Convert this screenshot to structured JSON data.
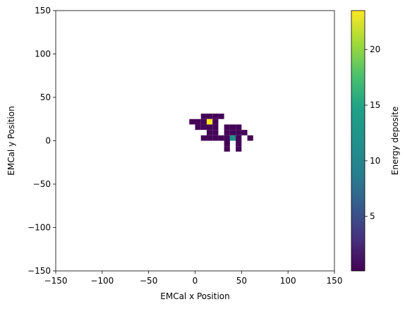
{
  "chart_data": {
    "type": "heatmap",
    "title": "",
    "xlabel": "EMCal x Position",
    "ylabel": "EMCal y Position",
    "xlim": [
      -150,
      150
    ],
    "ylim": [
      -150,
      150
    ],
    "x_ticks": [
      -150,
      -100,
      -50,
      0,
      50,
      100,
      150
    ],
    "y_ticks": [
      -150,
      -100,
      -50,
      0,
      50,
      100,
      150
    ],
    "x_tick_labels": [
      "−150",
      "−100",
      "−50",
      "0",
      "50",
      "100",
      "150"
    ],
    "y_tick_labels": [
      "−150",
      "−100",
      "−50",
      "0",
      "50",
      "100",
      "150"
    ],
    "bin_width": 6.25,
    "grid": false,
    "colormap": "viridis",
    "colorbar": {
      "label": "Energy deposite",
      "vmin": 0.1,
      "vmax": 23.5,
      "ticks": [
        5,
        10,
        15,
        20
      ],
      "tick_labels": [
        "5",
        "10",
        "15",
        "20"
      ]
    },
    "cells": [
      {
        "x": 6.25,
        "y": 25,
        "v": 0.3
      },
      {
        "x": 12.5,
        "y": 25,
        "v": 0.3
      },
      {
        "x": 18.75,
        "y": 25,
        "v": 0.3
      },
      {
        "x": 25,
        "y": 25,
        "v": 0.3
      },
      {
        "x": -6.25,
        "y": 18.75,
        "v": 0.3
      },
      {
        "x": 0,
        "y": 18.75,
        "v": 0.3
      },
      {
        "x": 6.25,
        "y": 18.75,
        "v": 0.3
      },
      {
        "x": 12.5,
        "y": 18.75,
        "v": 23.5
      },
      {
        "x": 18.75,
        "y": 18.75,
        "v": 0.3
      },
      {
        "x": 0,
        "y": 12.5,
        "v": 0.3
      },
      {
        "x": 6.25,
        "y": 12.5,
        "v": 0.3
      },
      {
        "x": 12.5,
        "y": 12.5,
        "v": 0.3
      },
      {
        "x": 18.75,
        "y": 12.5,
        "v": 0.3
      },
      {
        "x": 31.25,
        "y": 12.5,
        "v": 0.3
      },
      {
        "x": 37.5,
        "y": 12.5,
        "v": 0.3
      },
      {
        "x": 43.75,
        "y": 12.5,
        "v": 0.3
      },
      {
        "x": 12.5,
        "y": 6.25,
        "v": 0.3
      },
      {
        "x": 18.75,
        "y": 6.25,
        "v": 0.3
      },
      {
        "x": 31.25,
        "y": 6.25,
        "v": 0.3
      },
      {
        "x": 37.5,
        "y": 6.25,
        "v": 0.3
      },
      {
        "x": 43.75,
        "y": 6.25,
        "v": 0.3
      },
      {
        "x": 50,
        "y": 6.25,
        "v": 0.3
      },
      {
        "x": 6.25,
        "y": 0,
        "v": 0.3
      },
      {
        "x": 12.5,
        "y": 0,
        "v": 0.3
      },
      {
        "x": 18.75,
        "y": 0,
        "v": 0.3
      },
      {
        "x": 25,
        "y": 0,
        "v": 0.3
      },
      {
        "x": 31.25,
        "y": 0,
        "v": 0.3
      },
      {
        "x": 37.5,
        "y": 0,
        "v": 11.5
      },
      {
        "x": 43.75,
        "y": 0,
        "v": 0.3
      },
      {
        "x": 56.25,
        "y": 0,
        "v": 0.3
      },
      {
        "x": 31.25,
        "y": -6.25,
        "v": 0.3
      },
      {
        "x": 43.75,
        "y": -6.25,
        "v": 0.3
      },
      {
        "x": 31.25,
        "y": -12.5,
        "v": 0.3
      },
      {
        "x": 43.75,
        "y": -12.5,
        "v": 0.3
      }
    ]
  }
}
